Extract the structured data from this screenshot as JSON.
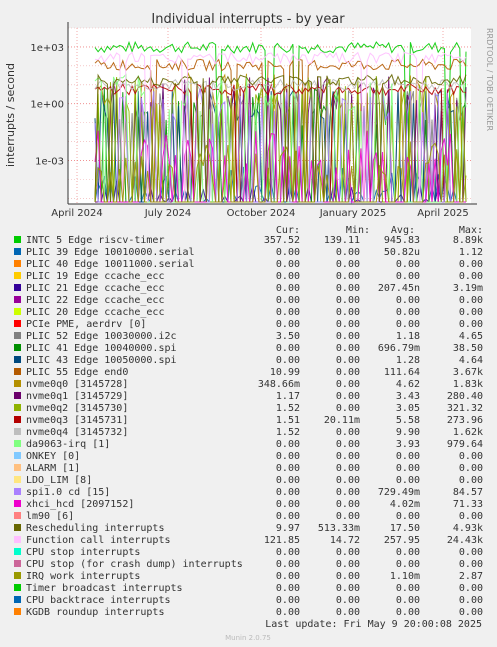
{
  "chart_data": {
    "type": "line",
    "title": "Individual interrupts - by year",
    "ylabel": "interrupts / second",
    "side_label": "RRDTOOL / TOBI OETIKER",
    "y_scale": "log",
    "ylim": [
      5e-06,
      10000
    ],
    "y_ticks": [
      {
        "value": 1000,
        "label": "1e+03"
      },
      {
        "value": 1,
        "label": "1e+00"
      },
      {
        "value": 0.001,
        "label": "1e-03"
      }
    ],
    "x_ticks": [
      "April 2024",
      "July 2024",
      "October 2024",
      "January 2025",
      "April 2025"
    ],
    "grid": true,
    "legend_headers": {
      "cur": "Cur:",
      "min": "Min:",
      "avg": "Avg:",
      "max": "Max:"
    },
    "series": [
      {
        "name": "INTC   5 Edge      riscv-timer",
        "color": "#00cc00",
        "cur": "357.52",
        "min": "139.11",
        "avg": "945.83",
        "max": "8.89k"
      },
      {
        "name": "PLIC  39 Edge      10010000.serial",
        "color": "#0066b3",
        "cur": "0.00",
        "min": "0.00",
        "avg": "50.82u",
        "max": "1.12"
      },
      {
        "name": "PLIC  40 Edge      10011000.serial",
        "color": "#ff8000",
        "cur": "0.00",
        "min": "0.00",
        "avg": "0.00",
        "max": "0.00"
      },
      {
        "name": "PLIC  19 Edge      ccache_ecc",
        "color": "#ffcc00",
        "cur": "0.00",
        "min": "0.00",
        "avg": "0.00",
        "max": "0.00"
      },
      {
        "name": "PLIC  21 Edge      ccache_ecc",
        "color": "#330099",
        "cur": "0.00",
        "min": "0.00",
        "avg": "207.45n",
        "max": "3.19m"
      },
      {
        "name": "PLIC  22 Edge      ccache_ecc",
        "color": "#990099",
        "cur": "0.00",
        "min": "0.00",
        "avg": "0.00",
        "max": "0.00"
      },
      {
        "name": "PLIC  20 Edge      ccache_ecc",
        "color": "#ccff00",
        "cur": "0.00",
        "min": "0.00",
        "avg": "0.00",
        "max": "0.00"
      },
      {
        "name": "PCIe PME, aerdrv [0]",
        "color": "#ff0000",
        "cur": "0.00",
        "min": "0.00",
        "avg": "0.00",
        "max": "0.00"
      },
      {
        "name": "PLIC  52 Edge      10030000.i2c",
        "color": "#808080",
        "cur": "3.50",
        "min": "0.00",
        "avg": "1.18",
        "max": "4.65"
      },
      {
        "name": "PLIC  41 Edge      10040000.spi",
        "color": "#008f00",
        "cur": "0.00",
        "min": "0.00",
        "avg": "696.79m",
        "max": "38.50"
      },
      {
        "name": "PLIC  43 Edge      10050000.spi",
        "color": "#00487d",
        "cur": "0.00",
        "min": "0.00",
        "avg": "1.28",
        "max": "4.64"
      },
      {
        "name": "PLIC  55 Edge      end0",
        "color": "#b35a00",
        "cur": "10.99",
        "min": "0.00",
        "avg": "111.64",
        "max": "3.67k"
      },
      {
        "name": "nvme0q0 [3145728]",
        "color": "#b38f00",
        "cur": "348.66m",
        "min": "0.00",
        "avg": "4.62",
        "max": "1.83k"
      },
      {
        "name": "nvme0q1 [3145729]",
        "color": "#6b006b",
        "cur": "1.17",
        "min": "0.00",
        "avg": "3.43",
        "max": "280.40"
      },
      {
        "name": "nvme0q2 [3145730]",
        "color": "#8fb300",
        "cur": "1.52",
        "min": "0.00",
        "avg": "3.05",
        "max": "321.32"
      },
      {
        "name": "nvme0q3 [3145731]",
        "color": "#b30000",
        "cur": "1.51",
        "min": "20.11m",
        "avg": "5.58",
        "max": "273.96"
      },
      {
        "name": "nvme0q4 [3145732]",
        "color": "#bebebe",
        "cur": "1.52",
        "min": "0.00",
        "avg": "9.90",
        "max": "1.62k"
      },
      {
        "name": "da9063-irq [1]",
        "color": "#80ff80",
        "cur": "0.00",
        "min": "0.00",
        "avg": "3.93",
        "max": "979.64"
      },
      {
        "name": "ONKEY [0]",
        "color": "#80c9ff",
        "cur": "0.00",
        "min": "0.00",
        "avg": "0.00",
        "max": "0.00"
      },
      {
        "name": "ALARM [1]",
        "color": "#ffc080",
        "cur": "0.00",
        "min": "0.00",
        "avg": "0.00",
        "max": "0.00"
      },
      {
        "name": "LDO_LIM [8]",
        "color": "#ffe680",
        "cur": "0.00",
        "min": "0.00",
        "avg": "0.00",
        "max": "0.00"
      },
      {
        "name": "spi1.0 cd [15]",
        "color": "#aa80ff",
        "cur": "0.00",
        "min": "0.00",
        "avg": "729.49m",
        "max": "84.57"
      },
      {
        "name": "xhci_hcd [2097152]",
        "color": "#ee00cc",
        "cur": "0.00",
        "min": "0.00",
        "avg": "4.02m",
        "max": "71.33"
      },
      {
        "name": "lm90 [6]",
        "color": "#ff8080",
        "cur": "0.00",
        "min": "0.00",
        "avg": "0.00",
        "max": "0.00"
      },
      {
        "name": "Rescheduling interrupts",
        "color": "#666600",
        "cur": "9.97",
        "min": "513.33m",
        "avg": "17.50",
        "max": "4.93k"
      },
      {
        "name": "Function call interrupts",
        "color": "#ffbfff",
        "cur": "121.85",
        "min": "14.72",
        "avg": "257.95",
        "max": "24.43k"
      },
      {
        "name": "CPU stop interrupts",
        "color": "#00ffcc",
        "cur": "0.00",
        "min": "0.00",
        "avg": "0.00",
        "max": "0.00"
      },
      {
        "name": "CPU stop (for crash dump) interrupts",
        "color": "#cc6699",
        "cur": "0.00",
        "min": "0.00",
        "avg": "0.00",
        "max": "0.00"
      },
      {
        "name": "IRQ work interrupts",
        "color": "#999900",
        "cur": "0.00",
        "min": "0.00",
        "avg": "1.10m",
        "max": "2.87"
      },
      {
        "name": "Timer broadcast interrupts",
        "color": "#00cc00",
        "cur": "0.00",
        "min": "0.00",
        "avg": "0.00",
        "max": "0.00"
      },
      {
        "name": "CPU backtrace interrupts",
        "color": "#0066b3",
        "cur": "0.00",
        "min": "0.00",
        "avg": "0.00",
        "max": "0.00"
      },
      {
        "name": "KGDB roundup interrupts",
        "color": "#ff8000",
        "cur": "0.00",
        "min": "0.00",
        "avg": "0.00",
        "max": "0.00"
      }
    ],
    "last_update": "Last update: Fri May  9 20:00:08 2025",
    "footer": "Munin 2.0.75"
  }
}
